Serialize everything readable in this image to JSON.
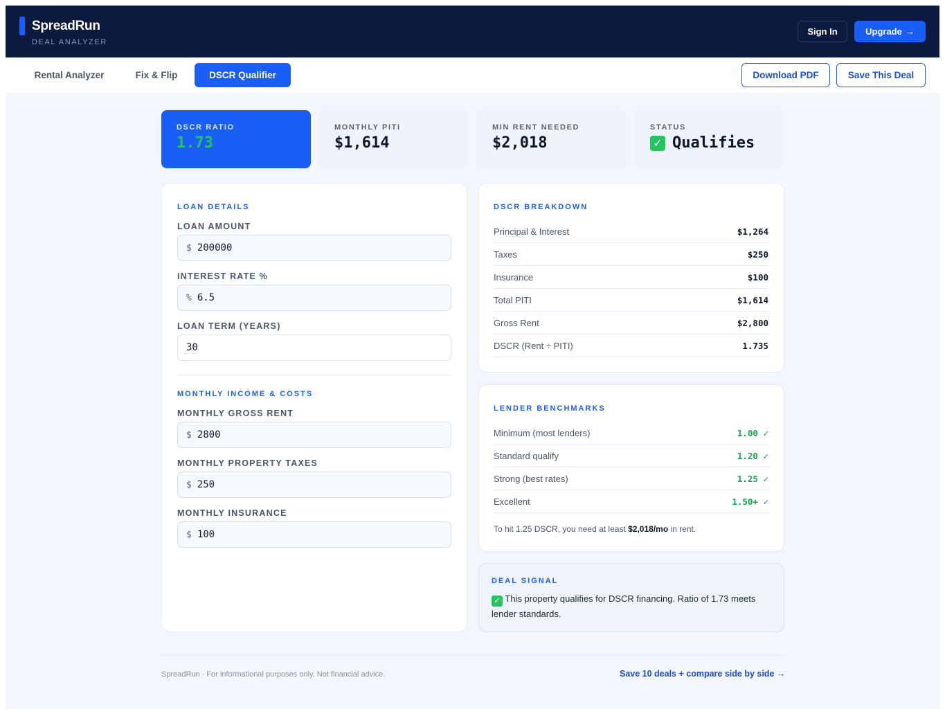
{
  "header": {
    "brand_name": "SpreadRun",
    "brand_sub": "DEAL ANALYZER",
    "sign_in": "Sign In",
    "upgrade": "Upgrade",
    "upgrade_arrow": "→"
  },
  "tabs": [
    {
      "label": "Rental Analyzer"
    },
    {
      "label": "Fix & Flip"
    },
    {
      "label": "DSCR Qualifier",
      "active": true
    }
  ],
  "actions": {
    "download_pdf": "Download PDF",
    "save_deal": "Save This Deal"
  },
  "kpis": {
    "dscr_ratio": {
      "label": "DSCR RATIO",
      "value": "1.73"
    },
    "monthly_piti": {
      "label": "MONTHLY PITI",
      "value": "$1,614"
    },
    "min_rent": {
      "label": "MIN RENT NEEDED",
      "value": "$2,018"
    },
    "status": {
      "label": "STATUS",
      "value": "Qualifies",
      "icon": "check-icon"
    }
  },
  "loan_details": {
    "title": "LOAN DETAILS",
    "loan_amount": {
      "label": "LOAN AMOUNT",
      "prefix": "$",
      "value": "200000"
    },
    "interest_rate": {
      "label": "INTEREST RATE %",
      "prefix": "%",
      "value": "6.5"
    },
    "loan_term": {
      "label": "LOAN TERM (YEARS)",
      "value": "30"
    }
  },
  "income_costs": {
    "title": "MONTHLY INCOME & COSTS",
    "gross_rent": {
      "label": "MONTHLY GROSS RENT",
      "prefix": "$",
      "value": "2800"
    },
    "property_taxes": {
      "label": "MONTHLY PROPERTY TAXES",
      "prefix": "$",
      "value": "250"
    },
    "insurance": {
      "label": "MONTHLY INSURANCE",
      "prefix": "$",
      "value": "100"
    }
  },
  "breakdown": {
    "title": "DSCR BREAKDOWN",
    "rows": [
      {
        "label": "Principal & Interest",
        "value": "$1,264"
      },
      {
        "label": "Taxes",
        "value": "$250"
      },
      {
        "label": "Insurance",
        "value": "$100"
      },
      {
        "label": "Total PITI",
        "value": "$1,614"
      },
      {
        "label": "Gross Rent",
        "value": "$2,800"
      },
      {
        "label": "DSCR (Rent ÷ PITI)",
        "value": "1.735"
      }
    ]
  },
  "benchmarks": {
    "title": "LENDER BENCHMARKS",
    "rows": [
      {
        "label": "Minimum (most lenders)",
        "value": "1.00 ✓"
      },
      {
        "label": "Standard qualify",
        "value": "1.20 ✓"
      },
      {
        "label": "Strong (best rates)",
        "value": "1.25 ✓"
      },
      {
        "label": "Excellent",
        "value": "1.50+ ✓"
      }
    ],
    "note_prefix": "To hit 1.25 DSCR, you need at least ",
    "note_value": "$2,018/mo",
    "note_suffix": " in rent."
  },
  "deal_signal": {
    "title": "DEAL SIGNAL",
    "text": "This property qualifies for DSCR financing. Ratio of 1.73 meets lender standards."
  },
  "footer": {
    "left": "SpreadRun · For informational purposes only. Not financial advice.",
    "right": "Save 10 deals + compare side by side →"
  },
  "colors": {
    "navy": "#0d1a3f",
    "accent": "#1a5ff5",
    "green": "#22c55e",
    "background": "#f3f6fc"
  }
}
